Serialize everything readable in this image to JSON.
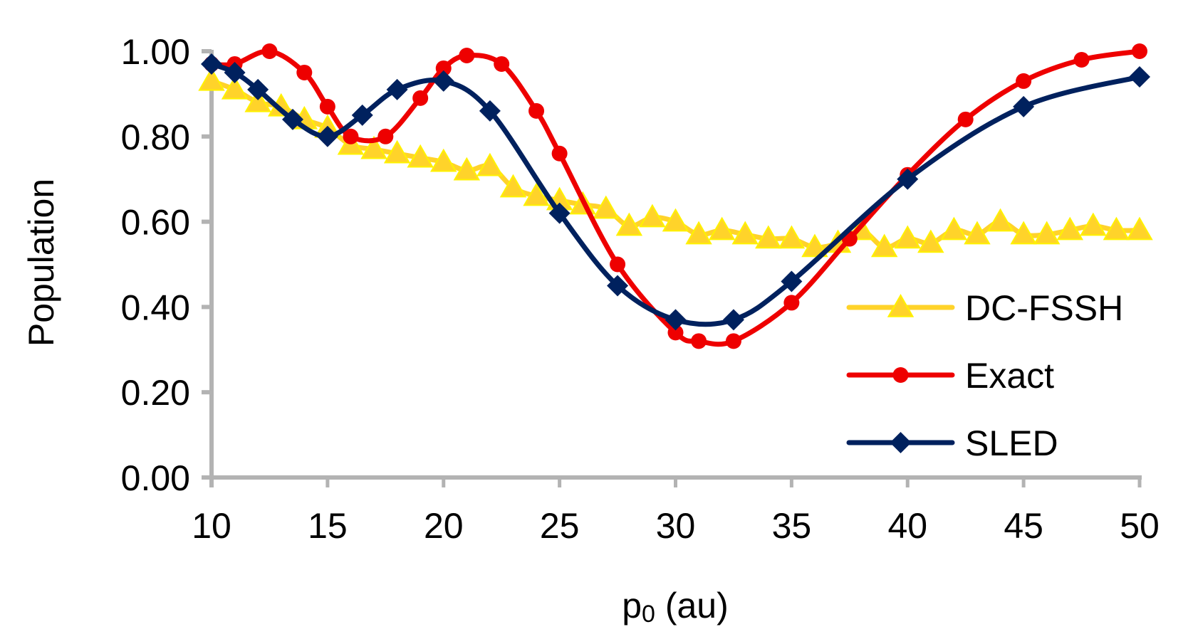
{
  "chart_data": {
    "type": "line",
    "title": "",
    "xlabel": "p",
    "xlabel_subscript": "0",
    "xlabel_suffix": " (au)",
    "ylabel": "Population",
    "xlim": [
      10,
      50
    ],
    "ylim": [
      0,
      1
    ],
    "xticks": [
      10,
      15,
      20,
      25,
      30,
      35,
      40,
      45,
      50
    ],
    "xtick_labels": [
      "10",
      "15",
      "20",
      "25",
      "30",
      "35",
      "40",
      "45",
      "50"
    ],
    "yticks": [
      0,
      0.2,
      0.4,
      0.6,
      0.8,
      1.0
    ],
    "ytick_labels": [
      "0.00",
      "0.20",
      "0.40",
      "0.60",
      "0.80",
      "1.00"
    ],
    "grid": false,
    "legend_position": "bottom-right",
    "series": [
      {
        "name": "DC-FSSH",
        "color": "#FFD32A",
        "marker": "triangle",
        "x": [
          10,
          11,
          12,
          13,
          14,
          15,
          16,
          17,
          18,
          19,
          20,
          21,
          22,
          23,
          24,
          25,
          26,
          27,
          28,
          29,
          30,
          31,
          32,
          33,
          34,
          35,
          36,
          37,
          38,
          39,
          40,
          41,
          42,
          43,
          44,
          45,
          46,
          47,
          48,
          49,
          50
        ],
        "y": [
          0.93,
          0.91,
          0.88,
          0.87,
          0.84,
          0.82,
          0.78,
          0.77,
          0.76,
          0.75,
          0.74,
          0.72,
          0.73,
          0.68,
          0.66,
          0.65,
          0.64,
          0.63,
          0.59,
          0.61,
          0.6,
          0.57,
          0.58,
          0.57,
          0.56,
          0.56,
          0.54,
          0.55,
          0.58,
          0.54,
          0.56,
          0.55,
          0.58,
          0.57,
          0.6,
          0.57,
          0.57,
          0.58,
          0.59,
          0.58,
          0.58
        ]
      },
      {
        "name": "Exact",
        "color": "#EE0000",
        "marker": "circle",
        "x": [
          10,
          11,
          12.5,
          14,
          15,
          16,
          17.5,
          19,
          20,
          21,
          22.5,
          24,
          25,
          27.5,
          30,
          31,
          32.5,
          35,
          37.5,
          40,
          42.5,
          45,
          47.5,
          50
        ],
        "y": [
          0.97,
          0.97,
          1.0,
          0.95,
          0.87,
          0.8,
          0.8,
          0.89,
          0.96,
          0.99,
          0.97,
          0.86,
          0.76,
          0.5,
          0.34,
          0.32,
          0.32,
          0.41,
          0.56,
          0.71,
          0.84,
          0.93,
          0.98,
          1.0
        ]
      },
      {
        "name": "SLED",
        "color": "#00215E",
        "marker": "diamond",
        "x": [
          10,
          11,
          12,
          13.5,
          15,
          16.5,
          18,
          20,
          22,
          25,
          27.5,
          30,
          32.5,
          35,
          40,
          45,
          50
        ],
        "y": [
          0.97,
          0.95,
          0.91,
          0.84,
          0.8,
          0.85,
          0.91,
          0.93,
          0.86,
          0.62,
          0.45,
          0.37,
          0.37,
          0.46,
          0.7,
          0.87,
          0.94
        ]
      }
    ]
  }
}
